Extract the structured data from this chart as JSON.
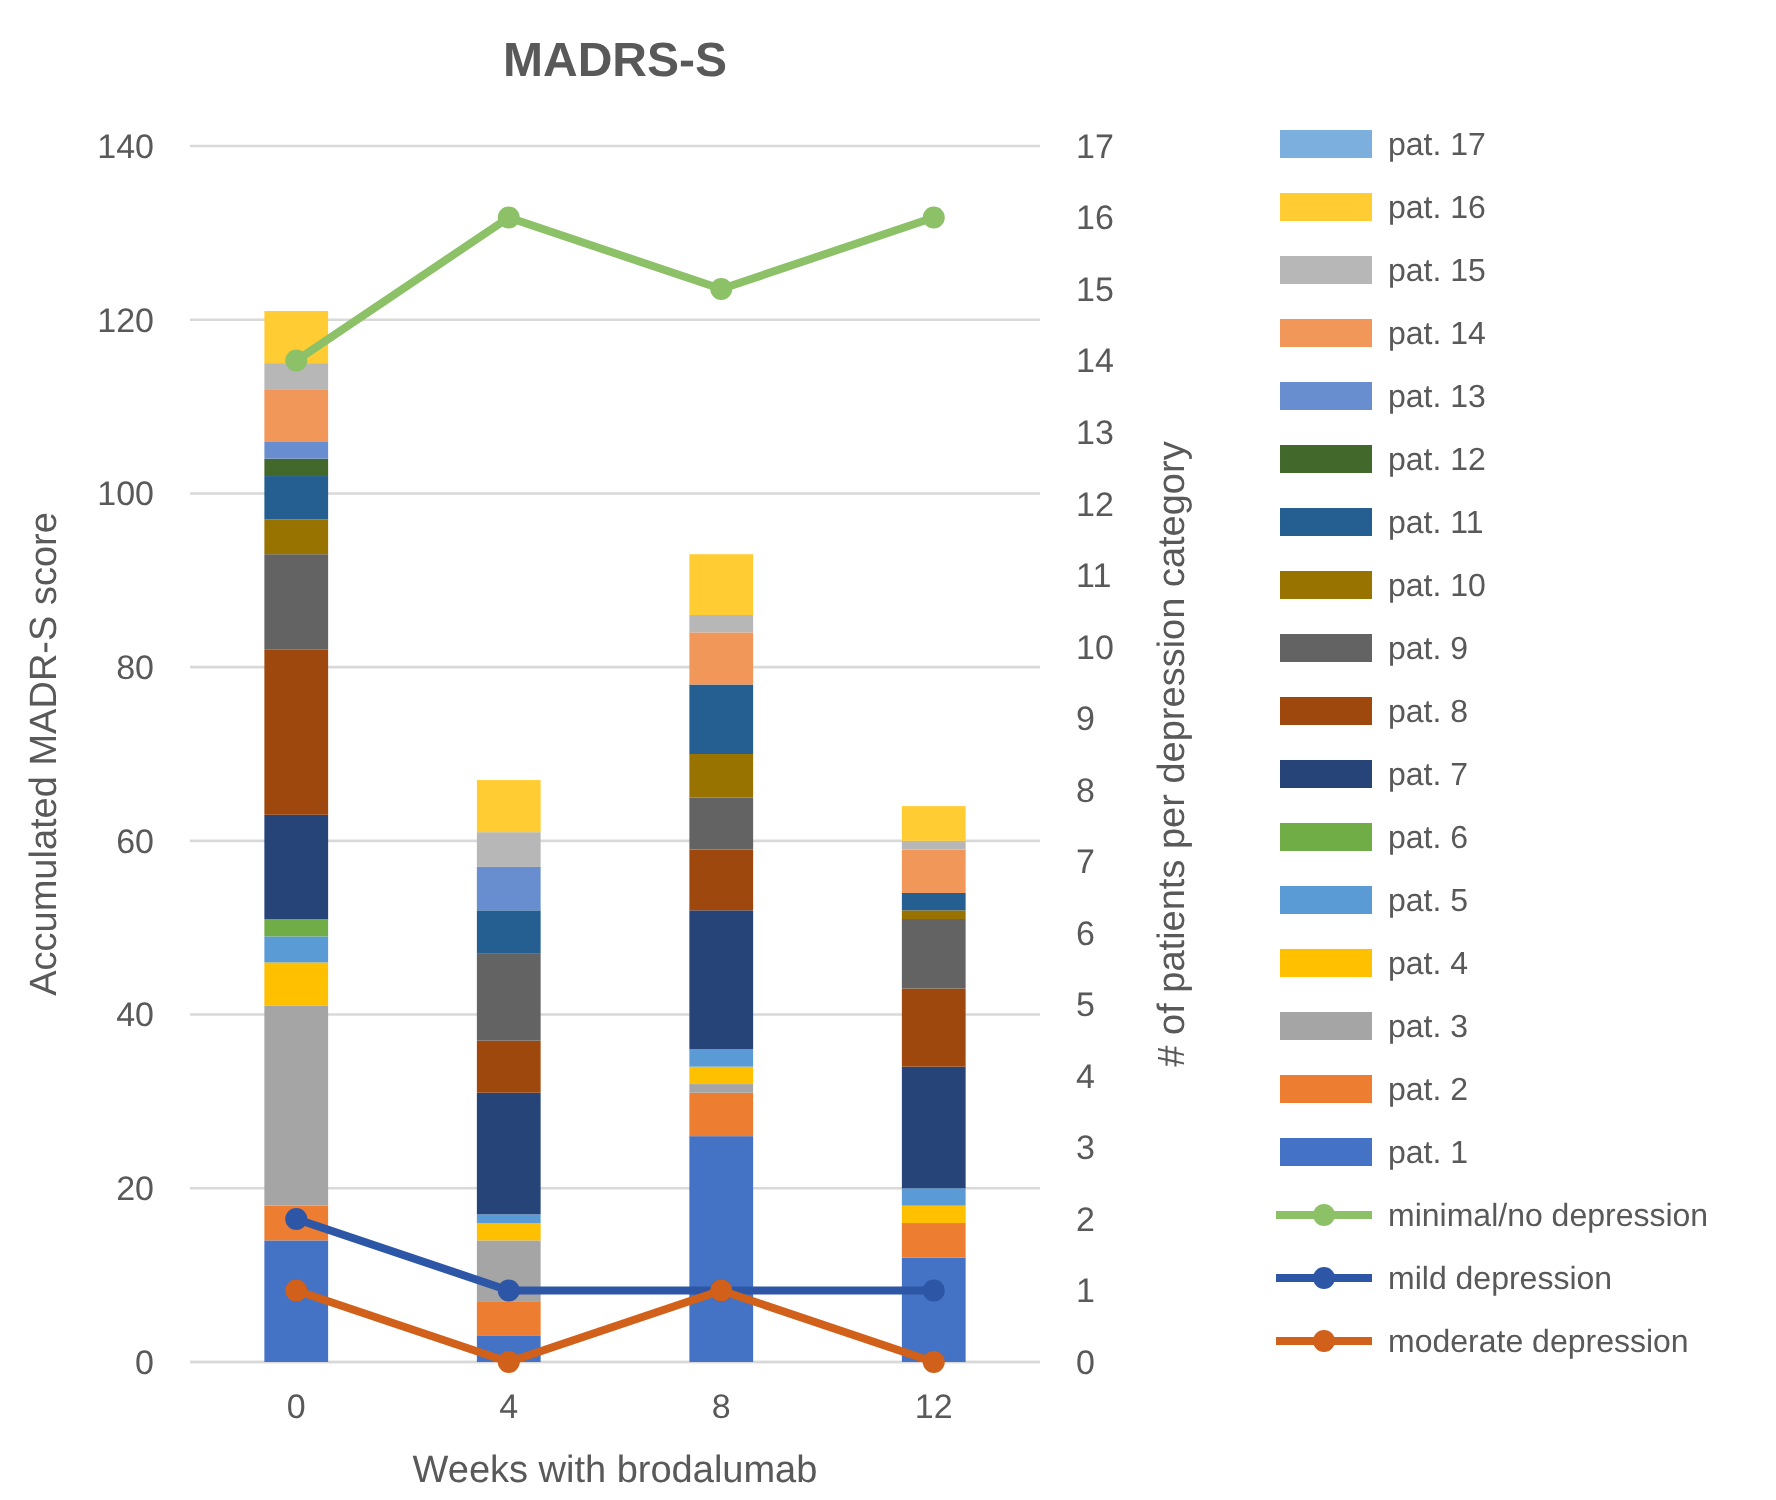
{
  "chart_data": {
    "type": "bar",
    "title": "MADRS-S",
    "xlabel": "Weeks with brodalumab",
    "ylabel": "Accumulated MADR-S score",
    "y2label": "# of patients per depression category",
    "categories": [
      "0",
      "4",
      "8",
      "12"
    ],
    "stacked": true,
    "ylim": [
      0,
      140
    ],
    "yticks": [
      0,
      20,
      40,
      60,
      80,
      100,
      120,
      140
    ],
    "y2lim": [
      0,
      17
    ],
    "y2ticks": [
      0,
      1,
      2,
      3,
      4,
      5,
      6,
      7,
      8,
      9,
      10,
      11,
      12,
      13,
      14,
      15,
      16,
      17
    ],
    "grid": "y",
    "legend": "right",
    "marker": "circle",
    "line_style": "solid",
    "series": [
      {
        "name": "pat. 1",
        "color": "#4472c4",
        "values": [
          14,
          3,
          26,
          12
        ]
      },
      {
        "name": "pat. 2",
        "color": "#ed7d31",
        "values": [
          4,
          4,
          5,
          4
        ]
      },
      {
        "name": "pat. 3",
        "color": "#a5a5a5",
        "values": [
          23,
          7,
          1,
          0
        ]
      },
      {
        "name": "pat. 4",
        "color": "#ffc000",
        "values": [
          5,
          2,
          2,
          2
        ]
      },
      {
        "name": "pat. 5",
        "color": "#5b9bd5",
        "values": [
          3,
          1,
          2,
          2
        ]
      },
      {
        "name": "pat. 6",
        "color": "#70ad47",
        "values": [
          2,
          0,
          0,
          0
        ]
      },
      {
        "name": "pat. 7",
        "color": "#264478",
        "values": [
          12,
          14,
          16,
          14
        ]
      },
      {
        "name": "pat. 8",
        "color": "#9e480e",
        "values": [
          19,
          6,
          7,
          9
        ]
      },
      {
        "name": "pat. 9",
        "color": "#636363",
        "values": [
          11,
          10,
          6,
          8
        ]
      },
      {
        "name": "pat. 10",
        "color": "#997300",
        "values": [
          4,
          0,
          5,
          1
        ]
      },
      {
        "name": "pat. 11",
        "color": "#255e91",
        "values": [
          5,
          5,
          8,
          2
        ]
      },
      {
        "name": "pat. 12",
        "color": "#43682b",
        "values": [
          2,
          0,
          0,
          0
        ]
      },
      {
        "name": "pat. 13",
        "color": "#698ed0",
        "values": [
          2,
          5,
          0,
          0
        ]
      },
      {
        "name": "pat. 14",
        "color": "#f1975a",
        "values": [
          6,
          0,
          6,
          5
        ]
      },
      {
        "name": "pat. 15",
        "color": "#b7b7b7",
        "values": [
          3,
          4,
          2,
          1
        ]
      },
      {
        "name": "pat. 16",
        "color": "#ffcd33",
        "values": [
          6,
          6,
          7,
          4
        ]
      },
      {
        "name": "pat. 17",
        "color": "#7cafdd",
        "values": [
          0,
          0,
          0,
          0
        ]
      },
      {
        "name": "minimal/no depression",
        "type": "line",
        "axis": "y2",
        "color": "#8cc168",
        "values": [
          14,
          16,
          15,
          16
        ]
      },
      {
        "name": "mild depression",
        "type": "line",
        "axis": "y2",
        "color": "#2e56a6",
        "values": [
          2,
          1,
          1,
          1
        ]
      },
      {
        "name": "moderate depression",
        "type": "line",
        "axis": "y2",
        "color": "#d0601a",
        "values": [
          1,
          0,
          1,
          0
        ]
      }
    ]
  }
}
